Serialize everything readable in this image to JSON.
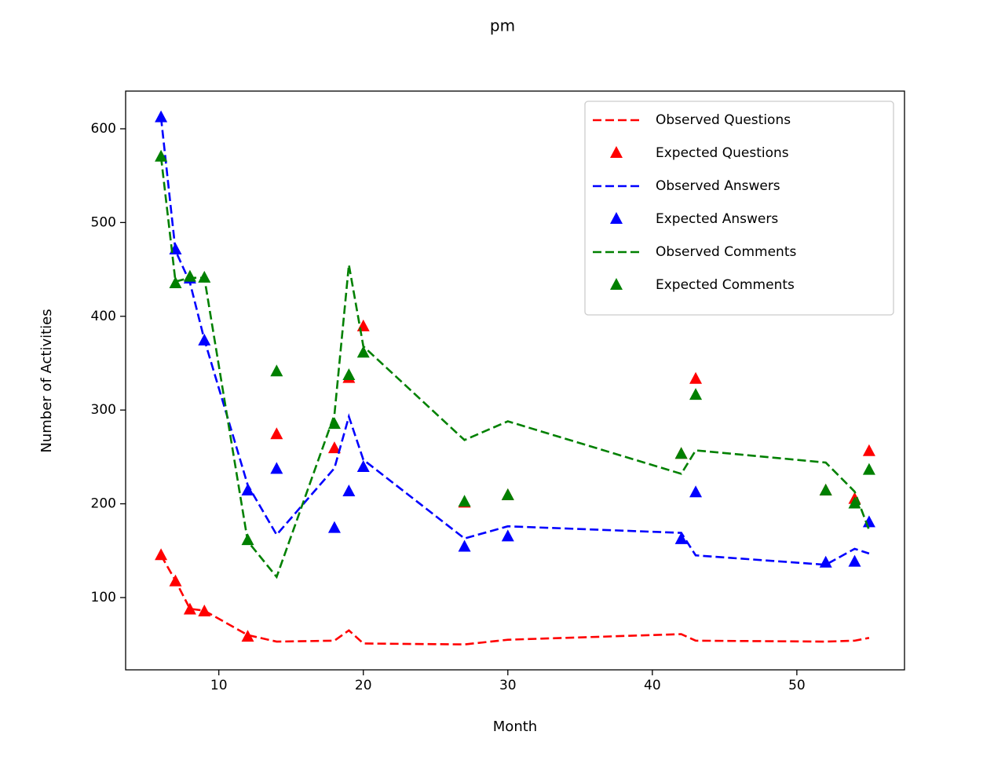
{
  "chart_data": {
    "type": "line",
    "title": "pm",
    "xlabel": "Month",
    "ylabel": "Number of Activities",
    "x": [
      6,
      7,
      8,
      9,
      12,
      14,
      18,
      19,
      20,
      27,
      30,
      42,
      43,
      52,
      54,
      55
    ],
    "series": [
      {
        "name": "Observed Questions",
        "color": "#ff0000",
        "style": "dashed",
        "values": [
          145,
          118,
          88,
          86,
          60,
          53,
          54,
          65,
          51,
          50,
          55,
          61,
          54,
          53,
          54,
          57
        ]
      },
      {
        "name": "Expected Questions",
        "color": "#ff0000",
        "style": "triangle",
        "values": [
          145,
          117,
          87,
          85,
          58,
          274,
          259,
          334,
          389,
          201,
          209,
          253,
          333,
          214,
          205,
          256
        ]
      },
      {
        "name": "Observed Answers",
        "color": "#0000ff",
        "style": "dashed",
        "values": [
          612,
          470,
          436,
          375,
          220,
          167,
          238,
          293,
          247,
          163,
          176,
          169,
          145,
          135,
          152,
          147
        ]
      },
      {
        "name": "Expected Answers",
        "color": "#0000ff",
        "style": "triangle",
        "values": [
          612,
          471,
          440,
          374,
          214,
          237,
          174,
          213,
          239,
          154,
          165,
          162,
          212,
          137,
          138,
          180
        ]
      },
      {
        "name": "Observed Comments",
        "color": "#008000",
        "style": "dashed",
        "values": [
          570,
          437,
          441,
          441,
          160,
          122,
          295,
          455,
          368,
          268,
          288,
          232,
          257,
          244,
          213,
          172
        ]
      },
      {
        "name": "Expected Comments",
        "color": "#008000",
        "style": "triangle",
        "values": [
          570,
          435,
          442,
          441,
          161,
          341,
          285,
          337,
          361,
          202,
          209,
          253,
          316,
          214,
          200,
          236
        ]
      }
    ],
    "xlim": [
      3.55,
      57.45
    ],
    "xticks": [
      10,
      20,
      30,
      40,
      50
    ],
    "ylim": [
      22.9,
      640.2
    ],
    "yticks": [
      100,
      200,
      300,
      400,
      500,
      600
    ],
    "legend": "upper right"
  }
}
